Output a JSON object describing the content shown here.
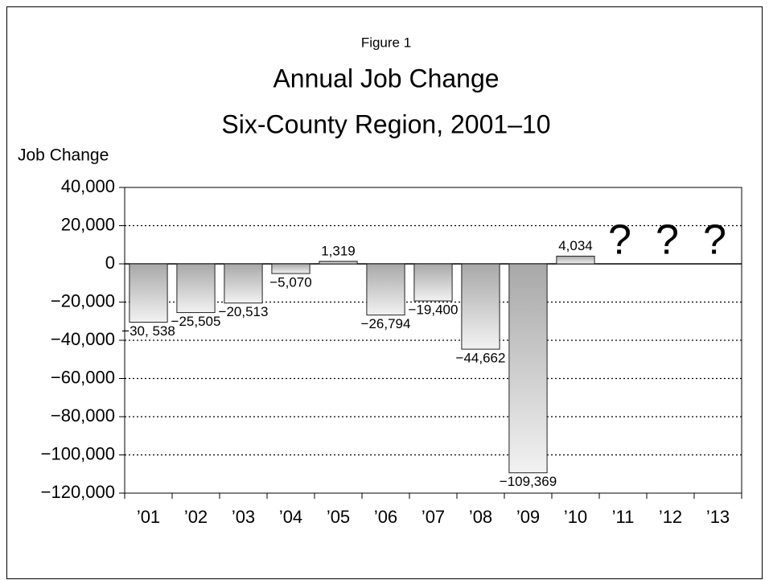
{
  "chart_data": {
    "type": "bar",
    "subtitle_top": "Figure 1",
    "title": "Annual Job Change",
    "subtitle": "Six-County Region, 2001–10",
    "y_label": "Job Change",
    "categories": [
      "’01",
      "’02",
      "’03",
      "’04",
      "’05",
      "’06",
      "’07",
      "’08",
      "’09",
      "’10",
      "’11",
      "’12",
      "’13"
    ],
    "values": [
      -30538,
      -25505,
      -20513,
      -5070,
      1319,
      -26794,
      -19400,
      -44662,
      -109369,
      4034,
      null,
      null,
      null
    ],
    "value_labels": [
      "−30, 538",
      "−25,505",
      "−20,513",
      "−5,070",
      "1,319",
      "−26,794",
      "−19,400",
      "−44,662",
      "−109,369",
      "4,034",
      null,
      null,
      null
    ],
    "annotations": [
      null,
      null,
      null,
      null,
      null,
      null,
      null,
      null,
      null,
      null,
      "?",
      "?",
      "?"
    ],
    "ylim": [
      -120000,
      40000
    ],
    "yticks": [
      {
        "value": -120000,
        "label": "−120,000"
      },
      {
        "value": -100000,
        "label": "−100,000"
      },
      {
        "value": -80000,
        "label": "−80,000"
      },
      {
        "value": -60000,
        "label": "−60,000"
      },
      {
        "value": -40000,
        "label": "−40,000"
      },
      {
        "value": -20000,
        "label": "−20,000"
      },
      0,
      {
        "value": 20000,
        "label": "20,000"
      },
      {
        "value": 40000,
        "label": "40,000"
      }
    ],
    "grid": true
  }
}
